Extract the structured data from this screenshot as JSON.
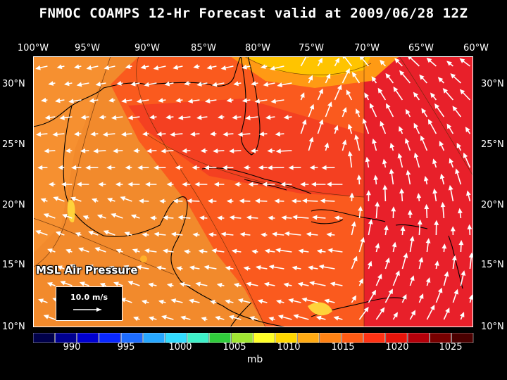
{
  "title": "FNMOC COAMPS 12-Hr Forecast valid at 2009/06/28 12Z",
  "longitude_labels": [
    "100°W",
    "95°W",
    "90°W",
    "85°W",
    "80°W",
    "75°W",
    "70°W",
    "65°W",
    "60°W"
  ],
  "latitude_labels": [
    "30°N",
    "25°N",
    "20°N",
    "15°N",
    "10°N"
  ],
  "parameter_label": "MSL Air Pressure",
  "wind_legend_label": "10.0 m/s",
  "colorbar": {
    "tick_labels": [
      "990",
      "995",
      "1000",
      "1005",
      "1010",
      "1015",
      "1020",
      "1025"
    ],
    "unit": "mb",
    "colors": [
      "#00004a",
      "#000090",
      "#0000d0",
      "#0a28ff",
      "#1e6cff",
      "#28a8ff",
      "#32dcff",
      "#3ef0c8",
      "#30cc3c",
      "#a0e632",
      "#ffff28",
      "#ffd700",
      "#ffaa14",
      "#ff8214",
      "#ff5a14",
      "#ff3214",
      "#e6140a",
      "#b4000a",
      "#780000",
      "#4a0000"
    ]
  },
  "colors": {
    "low_pressure": "#f28a2c",
    "mid_pressure": "#fa5a1e",
    "high_pressure": "#e8202a",
    "ridge": "#ffc400",
    "wind_vectors": "#ffffff",
    "coastlines": "#000000"
  }
}
